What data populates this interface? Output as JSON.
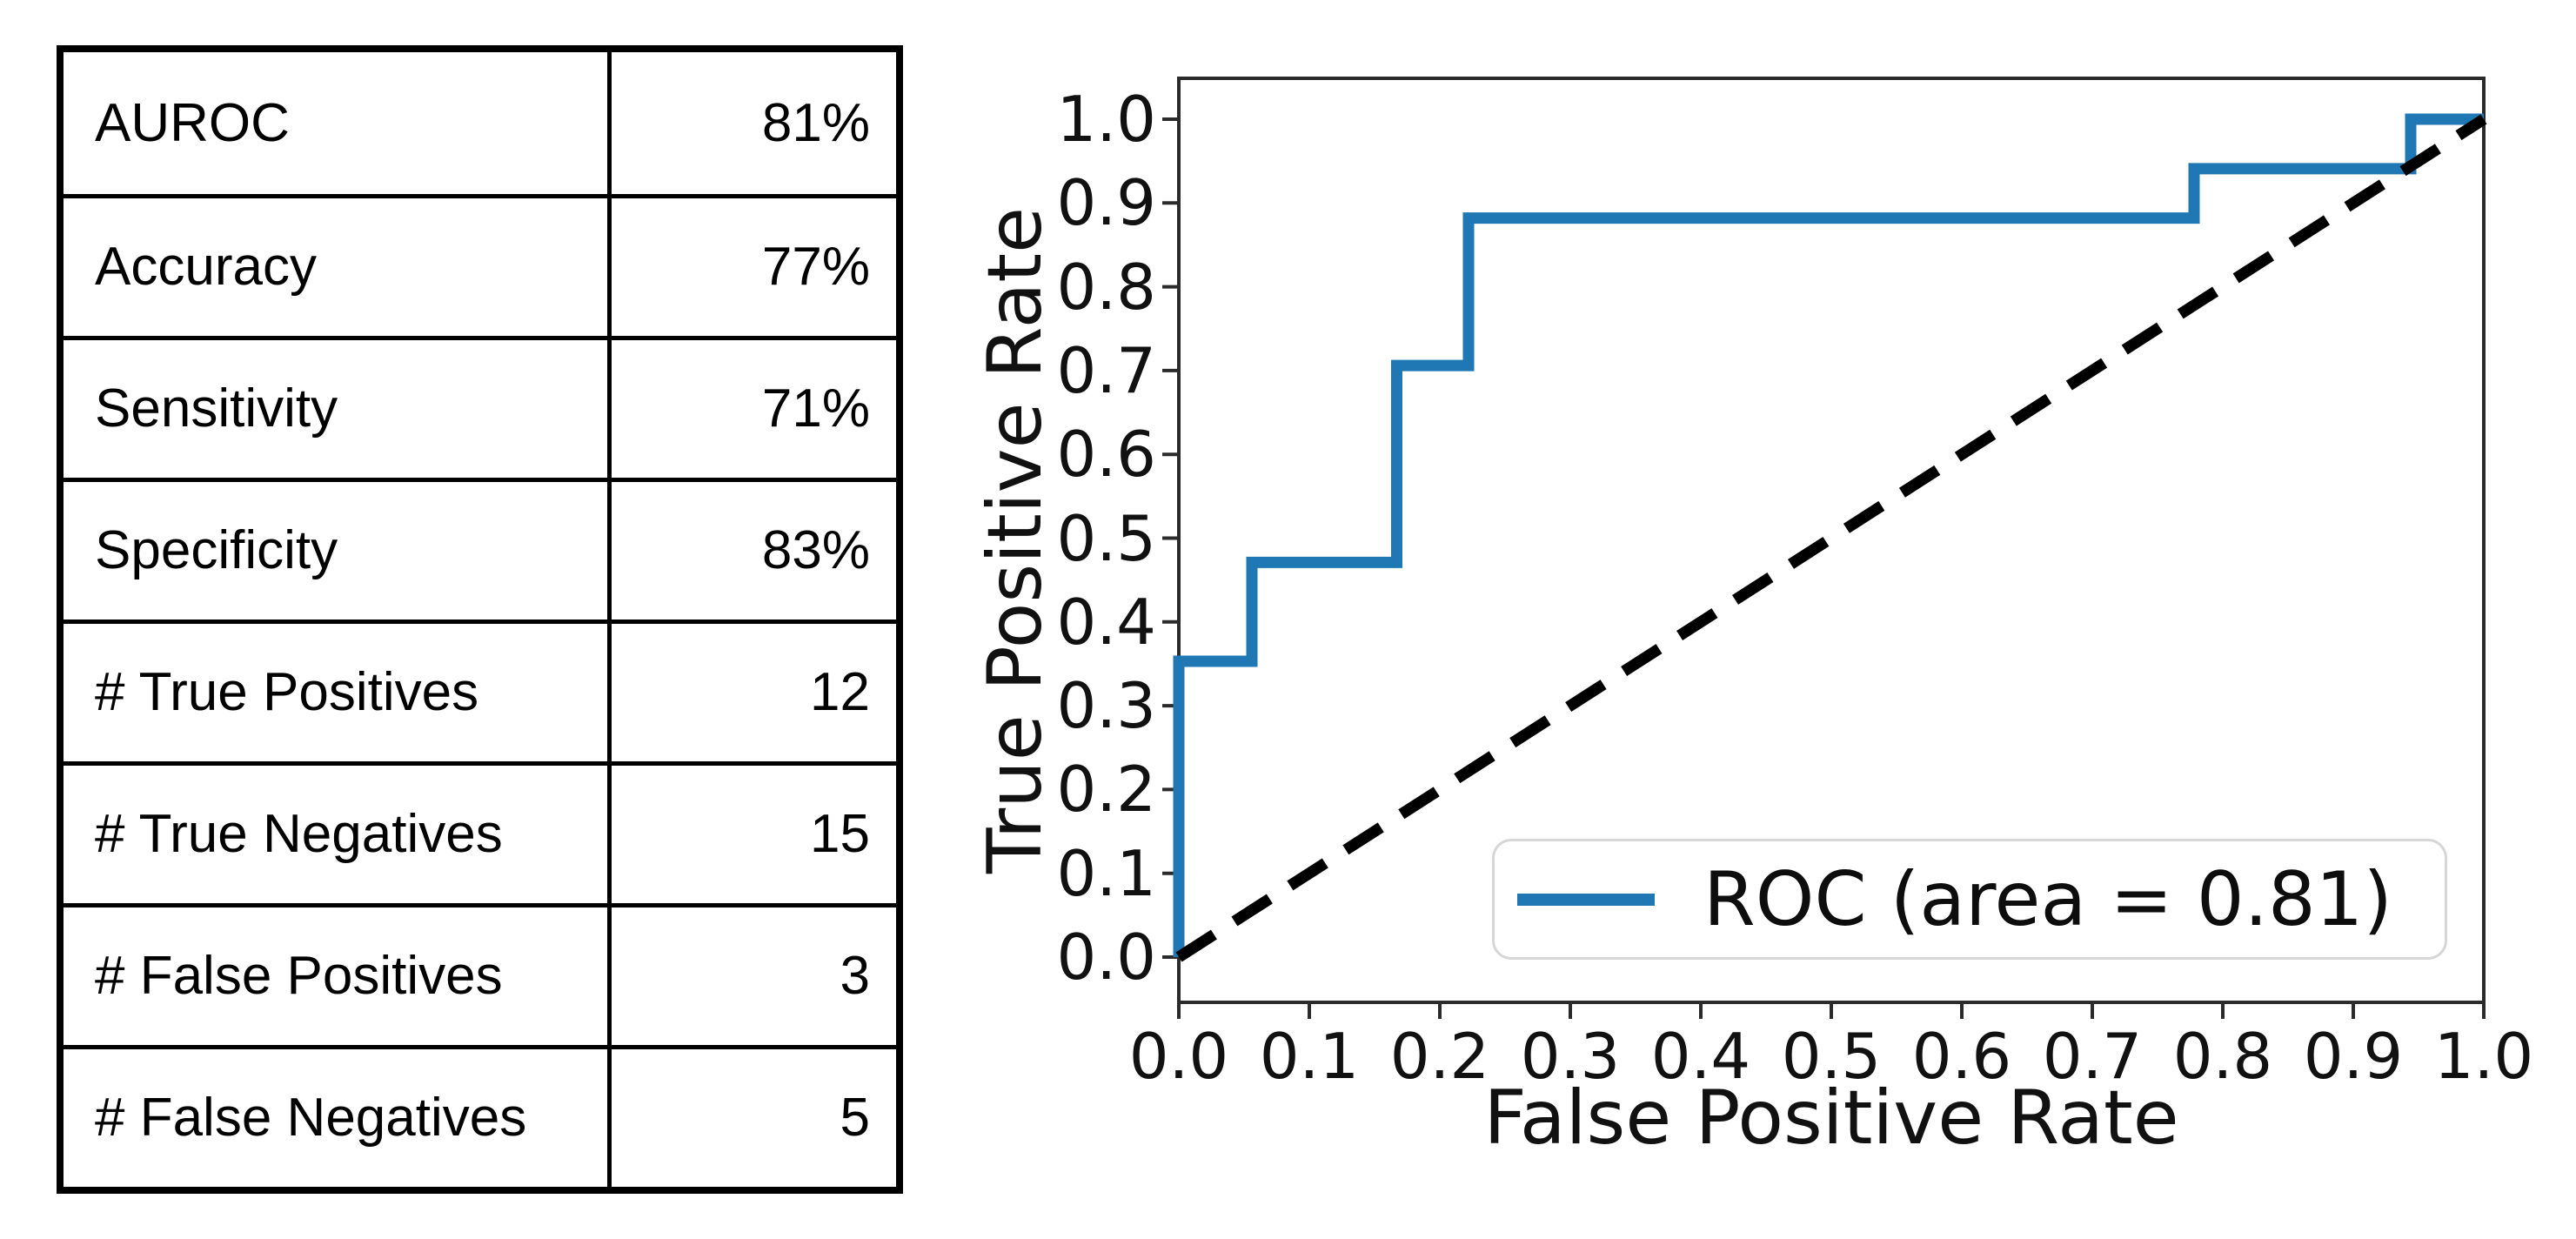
{
  "table": {
    "rows": [
      {
        "label": "AUROC",
        "value": "81%"
      },
      {
        "label": "Accuracy",
        "value": "77%"
      },
      {
        "label": "Sensitivity",
        "value": "71%"
      },
      {
        "label": "Specificity",
        "value": "83%"
      },
      {
        "label": "# True Positives",
        "value": "12"
      },
      {
        "label": "# True Negatives",
        "value": "15"
      },
      {
        "label": "# False Positives",
        "value": "3"
      },
      {
        "label": "# False Negatives",
        "value": "5"
      }
    ]
  },
  "chart_data": {
    "type": "line",
    "title": "",
    "xlabel": "False Positive Rate",
    "ylabel": "True Positive Rate",
    "xlim": [
      0.0,
      1.0
    ],
    "ylim": [
      -0.05,
      1.05
    ],
    "grid": false,
    "x_ticks": [
      0.0,
      0.1,
      0.2,
      0.3,
      0.4,
      0.5,
      0.6,
      0.7,
      0.8,
      0.9,
      1.0
    ],
    "y_ticks": [
      0.0,
      0.1,
      0.2,
      0.3,
      0.4,
      0.5,
      0.6,
      0.7,
      0.8,
      0.9,
      1.0
    ],
    "x_tick_labels": [
      "0.0",
      "0.1",
      "0.2",
      "0.3",
      "0.4",
      "0.5",
      "0.6",
      "0.7",
      "0.8",
      "0.9",
      "1.0"
    ],
    "y_tick_labels": [
      "0.0",
      "0.1",
      "0.2",
      "0.3",
      "0.4",
      "0.5",
      "0.6",
      "0.7",
      "0.8",
      "0.9",
      "1.0"
    ],
    "auc": 0.81,
    "legend": {
      "position": "lower right",
      "entries": [
        "ROC (area = 0.81)"
      ]
    },
    "series": [
      {
        "name": "ROC (area = 0.81)",
        "color": "#1f77b4",
        "line_style": "solid",
        "x": [
          0.0,
          0.0,
          0.056,
          0.056,
          0.167,
          0.167,
          0.222,
          0.222,
          0.778,
          0.778,
          0.944,
          0.944,
          1.0
        ],
        "y": [
          0.0,
          0.353,
          0.353,
          0.471,
          0.471,
          0.706,
          0.706,
          0.882,
          0.882,
          0.941,
          0.941,
          1.0,
          1.0
        ]
      },
      {
        "name": "chance-diagonal",
        "color": "#000000",
        "line_style": "dashed",
        "x": [
          0.0,
          1.0
        ],
        "y": [
          0.0,
          1.0
        ]
      }
    ]
  }
}
